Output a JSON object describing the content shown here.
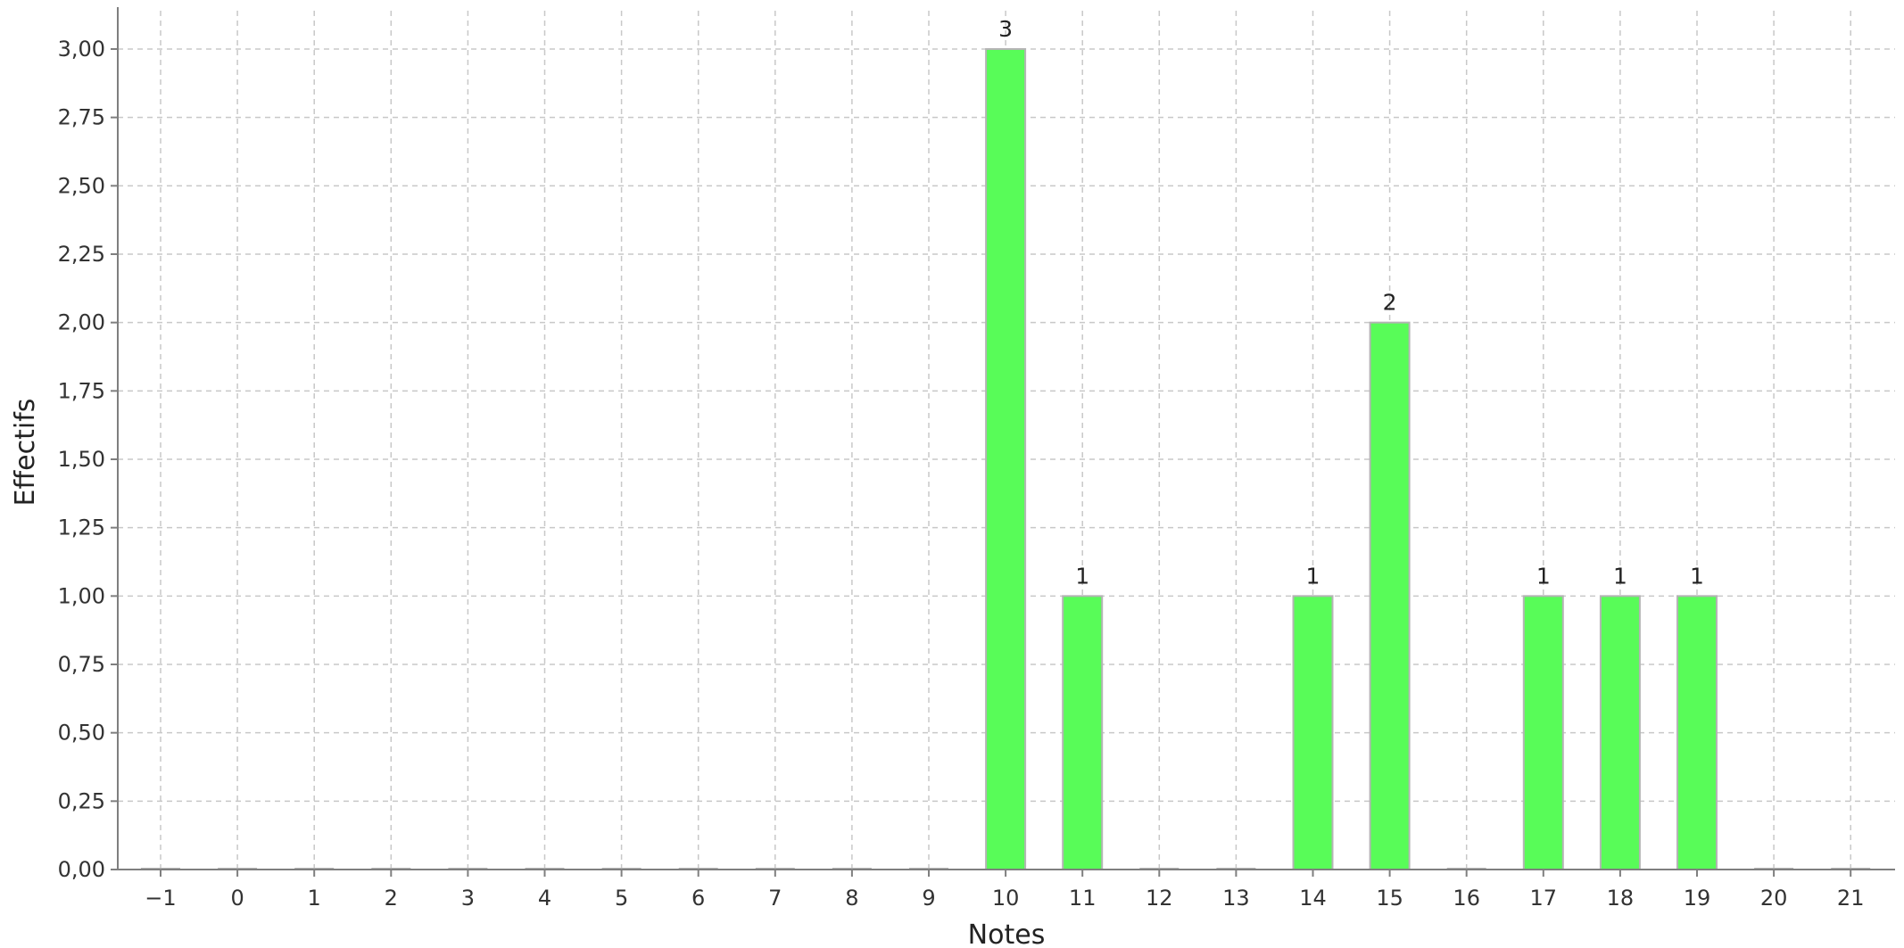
{
  "chart_data": {
    "type": "bar",
    "title": "",
    "xlabel": "Notes",
    "ylabel": "Effectifs",
    "categories": [
      "-1",
      "0",
      "1",
      "2",
      "3",
      "4",
      "5",
      "6",
      "7",
      "8",
      "9",
      "10",
      "11",
      "12",
      "13",
      "14",
      "15",
      "16",
      "17",
      "18",
      "19",
      "20",
      "21"
    ],
    "values": [
      0,
      0,
      0,
      0,
      0,
      0,
      0,
      0,
      0,
      0,
      0,
      3,
      1,
      0,
      0,
      1,
      2,
      0,
      1,
      1,
      1,
      0,
      0
    ],
    "data_labels": [
      "",
      "",
      "",
      "",
      "",
      "",
      "",
      "",
      "",
      "",
      "",
      "3",
      "1",
      "",
      "",
      "1",
      "2",
      "",
      "1",
      "1",
      "1",
      "",
      ""
    ],
    "ylim": [
      0,
      3
    ],
    "yticks": [
      0,
      0.25,
      0.5,
      0.75,
      1,
      1.25,
      1.5,
      1.75,
      2,
      2.25,
      2.5,
      2.75,
      3
    ],
    "ytick_labels": [
      "0,00",
      "0,25",
      "0,50",
      "0,75",
      "1,00",
      "1,25",
      "1,50",
      "1,75",
      "2,00",
      "2,25",
      "2,50",
      "2,75",
      "3,00"
    ],
    "grid": true,
    "legend": "none",
    "colors": {
      "bar_fill": "#58fc58",
      "bar_stroke": "#b4b4b4",
      "grid": "#c8c8c8",
      "axis": "#7f7f7f"
    }
  }
}
